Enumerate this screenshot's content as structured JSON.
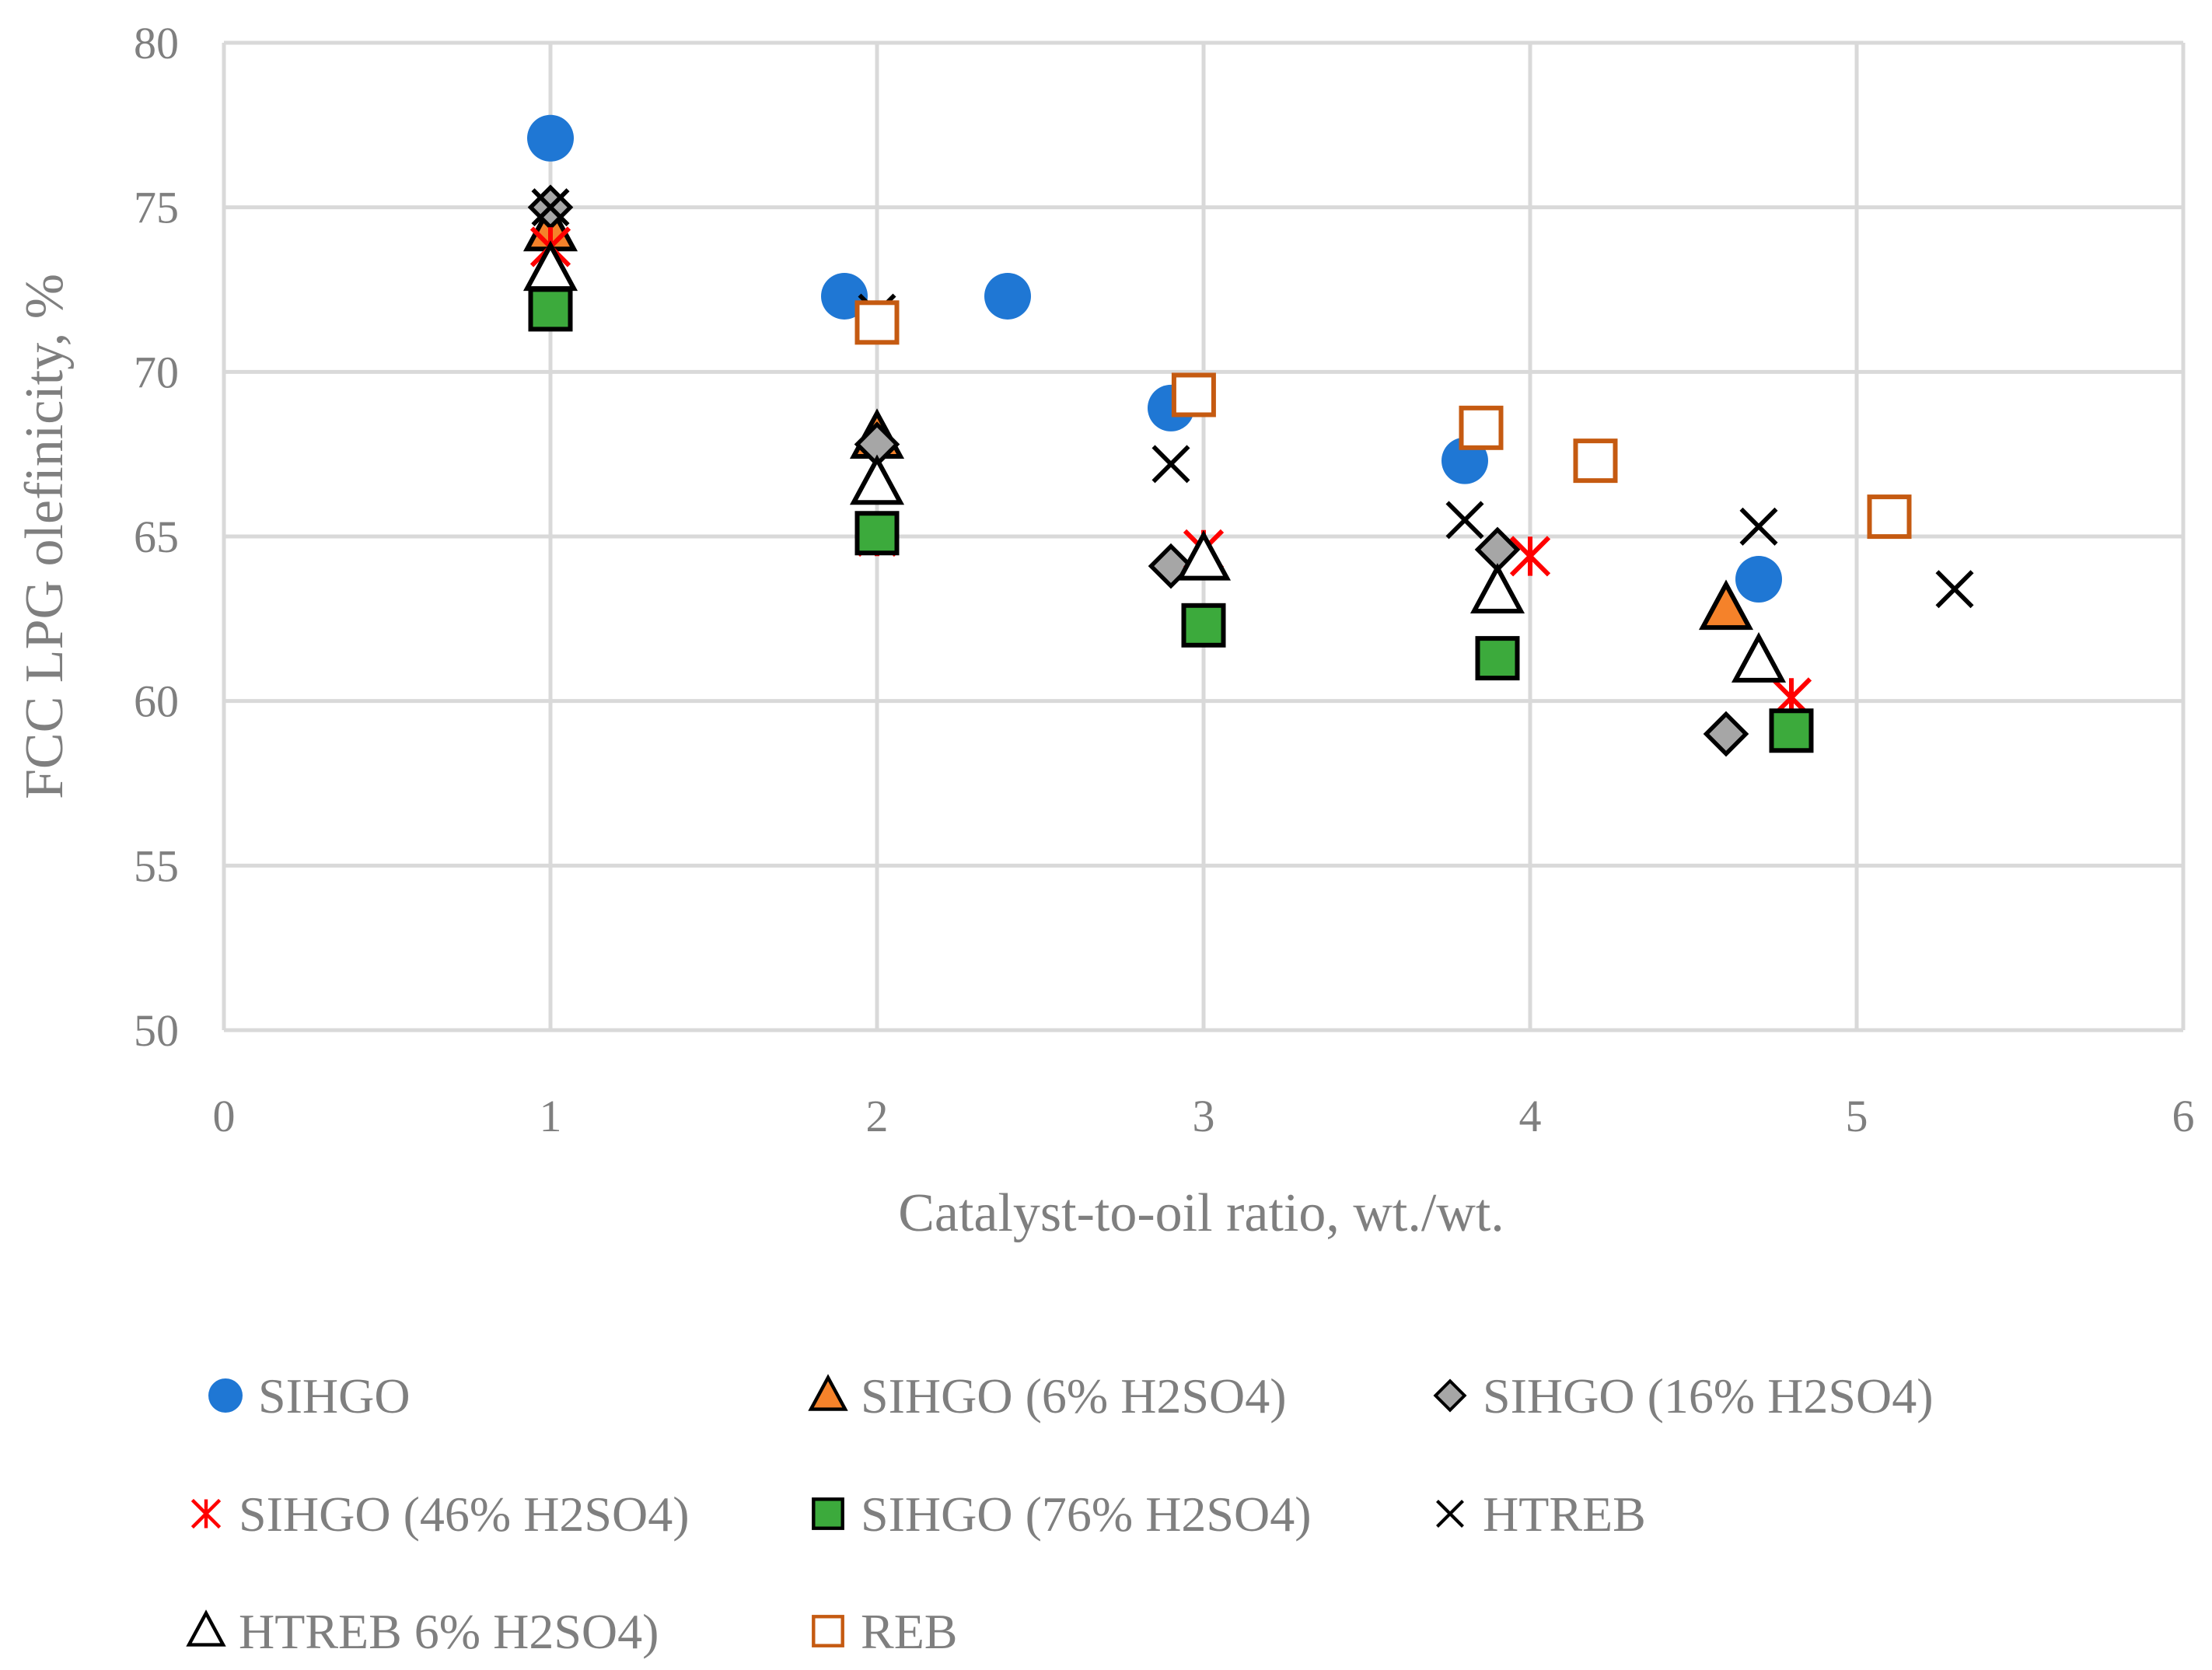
{
  "chart_data": {
    "type": "scatter",
    "title": "",
    "xlabel": "Catalyst-to-oil ratio, wt./wt.",
    "ylabel": "FCC LPG olefinicity, %",
    "xlim": [
      0,
      6
    ],
    "ylim": [
      50,
      80
    ],
    "xticks": [
      0,
      1,
      2,
      3,
      4,
      5,
      6
    ],
    "yticks": [
      50,
      55,
      60,
      65,
      70,
      75,
      80
    ],
    "grid": true,
    "legend_position": "bottom",
    "series": [
      {
        "name": "SIHGO",
        "marker": "circle",
        "color": "#1f77d4",
        "points": [
          [
            1,
            77.1
          ],
          [
            1.9,
            72.3
          ],
          [
            2.4,
            72.3
          ],
          [
            2.9,
            68.9
          ],
          [
            3.8,
            67.3
          ],
          [
            4.7,
            63.7
          ]
        ]
      },
      {
        "name": "SIHGO (6% H2SO4)",
        "marker": "triangle",
        "color": "#f5822a",
        "points": [
          [
            1,
            74.3
          ],
          [
            2,
            68.0
          ],
          [
            4.6,
            62.8
          ]
        ]
      },
      {
        "name": "SIHGO (16% H2SO4)",
        "marker": "diamond",
        "color": "#a6a6a6",
        "points": [
          [
            1,
            75.0
          ],
          [
            2,
            67.8
          ],
          [
            2.9,
            64.1
          ],
          [
            3.9,
            64.6
          ],
          [
            4.6,
            59.0
          ]
        ]
      },
      {
        "name": "SIHGO (46% H2SO4)",
        "marker": "asterisk",
        "color": "#ff0000",
        "points": [
          [
            1,
            73.8
          ],
          [
            2,
            65.0
          ],
          [
            3,
            64.6
          ],
          [
            4,
            64.4
          ],
          [
            4.8,
            60.1
          ]
        ]
      },
      {
        "name": "SIHGO (76% H2SO4)",
        "marker": "square",
        "color": "#3caa3c",
        "points": [
          [
            1,
            71.9
          ],
          [
            2,
            65.1
          ],
          [
            3,
            62.3
          ],
          [
            3.9,
            61.3
          ],
          [
            4.8,
            59.1
          ]
        ]
      },
      {
        "name": "HTREB",
        "marker": "x",
        "color": "#000000",
        "points": [
          [
            1,
            75.0
          ],
          [
            2,
            71.8
          ],
          [
            2.9,
            67.2
          ],
          [
            3.8,
            65.5
          ],
          [
            4.7,
            65.3
          ],
          [
            5.3,
            63.4
          ]
        ]
      },
      {
        "name": "HTREB 6% H2SO4)",
        "marker": "open-triangle",
        "color": "#000000",
        "points": [
          [
            1,
            73.1
          ],
          [
            2,
            66.6
          ],
          [
            3,
            64.3
          ],
          [
            3.9,
            63.3
          ],
          [
            4.7,
            61.2
          ]
        ]
      },
      {
        "name": "REB",
        "marker": "open-square",
        "color": "#c55a11",
        "points": [
          [
            2,
            71.5
          ],
          [
            2.97,
            69.3
          ],
          [
            3.85,
            68.3
          ],
          [
            4.2,
            67.3
          ],
          [
            5.1,
            65.6
          ]
        ]
      }
    ]
  }
}
